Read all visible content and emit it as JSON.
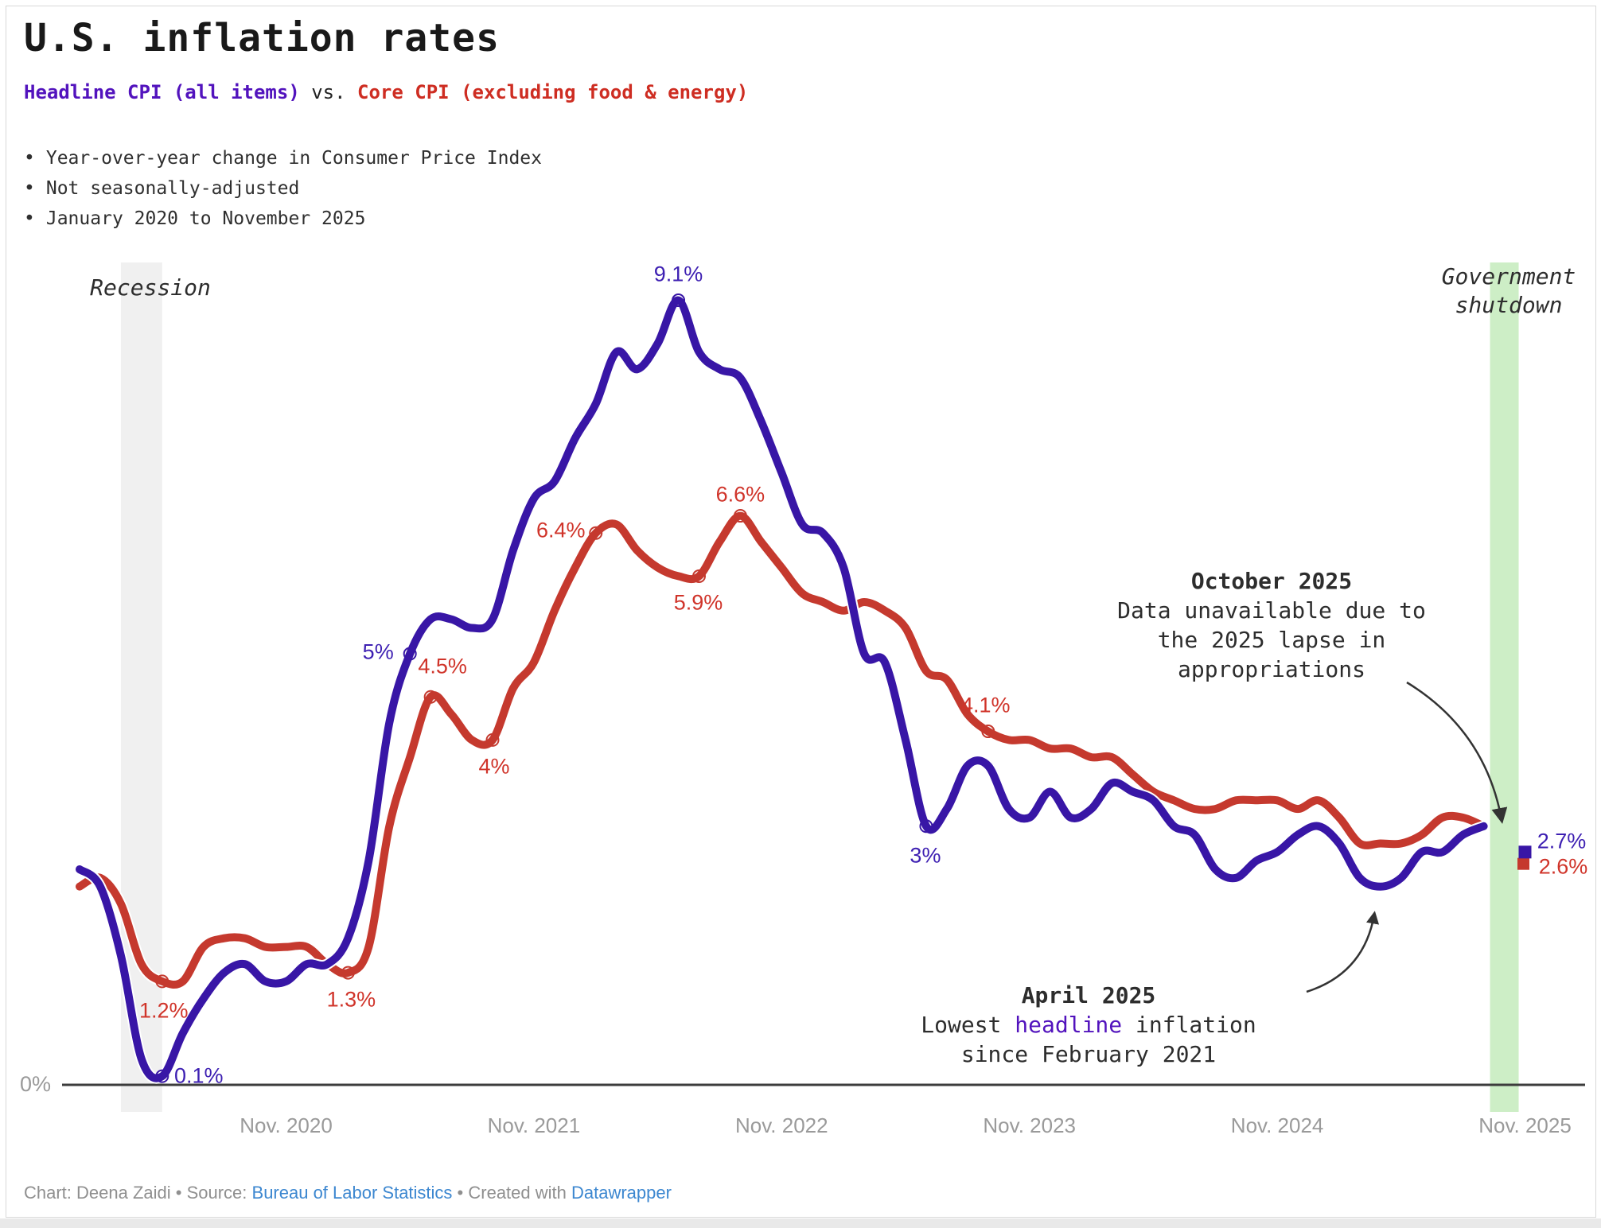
{
  "header": {
    "title": "U.S. inflation rates",
    "subtitle": {
      "headline_label": "Headline CPI (all items)",
      "vs_label": " vs. ",
      "core_label": "Core CPI (excluding food & energy)"
    },
    "bullet_char": "•",
    "bullets": [
      "Year-over-year change in Consumer Price Index",
      "Not seasonally-adjusted",
      "January 2020 to November 2025"
    ],
    "colors": {
      "headline_text": "#5213bd",
      "core_text": "#ce2d22"
    }
  },
  "chart_data": {
    "type": "line",
    "title": "U.S. inflation rates",
    "x_unit": "month",
    "x_range": [
      "2020-01",
      "2025-11"
    ],
    "ylim": [
      0,
      9.6
    ],
    "grid": false,
    "y_axis_zero_label": "0%",
    "x_ticks": [
      {
        "month": "2020-11",
        "label": "Nov. 2020"
      },
      {
        "month": "2021-11",
        "label": "Nov. 2021"
      },
      {
        "month": "2022-11",
        "label": "Nov. 2022"
      },
      {
        "month": "2023-11",
        "label": "Nov. 2023"
      },
      {
        "month": "2024-11",
        "label": "Nov. 2024"
      },
      {
        "month": "2025-11",
        "label": "Nov. 2025"
      }
    ],
    "series": [
      {
        "key": "core",
        "name": "Core CPI (excluding food & energy)",
        "line_color": "#c5392e",
        "label_color": "#d0342a",
        "start_month": "2020-01",
        "values": [
          2.3,
          2.4,
          2.1,
          1.4,
          1.2,
          1.2,
          1.6,
          1.7,
          1.7,
          1.6,
          1.6,
          1.6,
          1.4,
          1.3,
          1.6,
          3.0,
          3.8,
          4.5,
          4.3,
          4.0,
          4.0,
          4.6,
          4.9,
          5.5,
          6.0,
          6.4,
          6.5,
          6.2,
          6.0,
          5.9,
          5.9,
          6.3,
          6.6,
          6.3,
          6.0,
          5.7,
          5.6,
          5.5,
          5.6,
          5.5,
          5.3,
          4.8,
          4.7,
          4.3,
          4.1,
          4.0,
          4.0,
          3.9,
          3.9,
          3.8,
          3.8,
          3.6,
          3.4,
          3.3,
          3.2,
          3.2,
          3.3,
          3.3,
          3.3,
          3.2,
          3.3,
          3.1,
          2.8,
          2.8,
          2.8,
          2.9,
          3.1,
          3.1,
          3.0
        ],
        "isolated_point": {
          "month": "2025-11",
          "value": 2.6,
          "label": "2.6%"
        }
      },
      {
        "key": "headline",
        "name": "Headline CPI (all items)",
        "line_color": "#3816a6",
        "label_color": "#3d1fb2",
        "start_month": "2020-01",
        "values": [
          2.5,
          2.3,
          1.5,
          0.3,
          0.1,
          0.6,
          1.0,
          1.3,
          1.4,
          1.2,
          1.2,
          1.4,
          1.4,
          1.7,
          2.6,
          4.2,
          5.0,
          5.4,
          5.4,
          5.3,
          5.4,
          6.2,
          6.8,
          7.0,
          7.5,
          7.9,
          8.5,
          8.3,
          8.6,
          9.1,
          8.5,
          8.3,
          8.2,
          7.7,
          7.1,
          6.5,
          6.4,
          6.0,
          5.0,
          4.9,
          4.0,
          3.0,
          3.2,
          3.7,
          3.7,
          3.2,
          3.1,
          3.4,
          3.1,
          3.2,
          3.5,
          3.4,
          3.3,
          3.0,
          2.9,
          2.5,
          2.4,
          2.6,
          2.7,
          2.9,
          3.0,
          2.8,
          2.4,
          2.3,
          2.4,
          2.7,
          2.7,
          2.9,
          3.0
        ],
        "isolated_point": {
          "month": "2025-11",
          "value": 2.7,
          "label": "2.7%"
        }
      }
    ],
    "point_labels": [
      {
        "series": "headline",
        "month": "2020-05",
        "value": 0.1,
        "text": "0.1%"
      },
      {
        "series": "headline",
        "month": "2021-05",
        "value": 5.0,
        "text": "5%"
      },
      {
        "series": "headline",
        "month": "2022-06",
        "value": 9.1,
        "text": "9.1%"
      },
      {
        "series": "headline",
        "month": "2023-06",
        "value": 3.0,
        "text": "3%"
      },
      {
        "series": "headline",
        "month": "2025-11",
        "value": 2.7,
        "text": "2.7%"
      },
      {
        "series": "core",
        "month": "2020-05",
        "value": 1.2,
        "text": "1.2%"
      },
      {
        "series": "core",
        "month": "2021-02",
        "value": 1.3,
        "text": "1.3%"
      },
      {
        "series": "core",
        "month": "2021-06",
        "value": 4.5,
        "text": "4.5%"
      },
      {
        "series": "core",
        "month": "2021-09",
        "value": 4.0,
        "text": "4%"
      },
      {
        "series": "core",
        "month": "2022-02",
        "value": 6.4,
        "text": "6.4%"
      },
      {
        "series": "core",
        "month": "2022-07",
        "value": 5.9,
        "text": "5.9%"
      },
      {
        "series": "core",
        "month": "2022-09",
        "value": 6.6,
        "text": "6.6%"
      },
      {
        "series": "core",
        "month": "2023-09",
        "value": 4.1,
        "text": "4.1%"
      },
      {
        "series": "core",
        "month": "2025-11",
        "value": 2.6,
        "text": "2.6%"
      }
    ],
    "bands": [
      {
        "name": "recession",
        "label": "Recession",
        "label_lines": "Recession",
        "from": "2020-03",
        "to": "2020-05",
        "color": "#f0f0f0"
      },
      {
        "name": "government-shutdown",
        "label": "Government shutdown",
        "label_lines": "Government\nshutdown",
        "from": "2025-10",
        "to": "2025-11",
        "color": "#cdeec6"
      }
    ],
    "annotations": {
      "october": {
        "title": "October 2025",
        "lines": [
          "Data unavailable due to",
          "the 2025 lapse in",
          "appropriations"
        ]
      },
      "april": {
        "title": "April 2025",
        "line2_pre": "Lowest ",
        "line2_highlight": "headline",
        "line2_post": " inflation",
        "line3": "since February 2021"
      }
    }
  },
  "footer": {
    "prefix": "Chart: Deena Zaidi • Source: ",
    "source_link": "Bureau of Labor Statistics",
    "middle": " • Created with ",
    "tool_link": "Datawrapper"
  }
}
